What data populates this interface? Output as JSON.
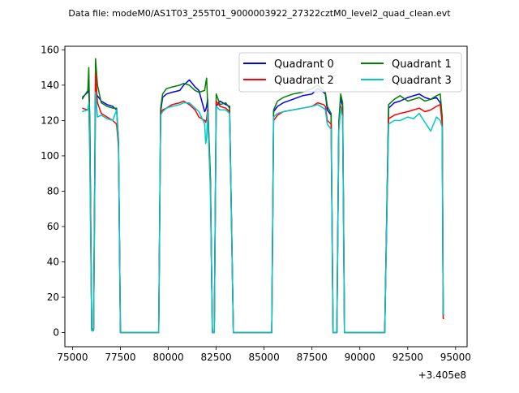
{
  "chart_data": {
    "type": "line",
    "title": "Data file: modeM0/AS1T03_255T01_9000003922_27322cztM0_level2_quad_clean.evt",
    "xlabel": "",
    "ylabel": "",
    "x_offset_label": "+3.405e8",
    "xlim": [
      74600,
      95600
    ],
    "ylim": [
      -8,
      162
    ],
    "x_ticks": [
      75000,
      77500,
      80000,
      82500,
      85000,
      87500,
      90000,
      92500,
      95000
    ],
    "x_tick_labels": [
      "75000",
      "77500",
      "80000",
      "82500",
      "85000",
      "87500",
      "90000",
      "92500",
      "95000"
    ],
    "y_ticks": [
      0,
      20,
      40,
      60,
      80,
      100,
      120,
      140,
      160
    ],
    "y_tick_labels": [
      "0",
      "20",
      "40",
      "60",
      "80",
      "100",
      "120",
      "140",
      "160"
    ],
    "grid": false,
    "legend": {
      "placement": "top-right",
      "columns": 2
    },
    "series": [
      {
        "name": "Quadrant 0",
        "color": "#0000ff",
        "x": [
          75500,
          75800,
          75850,
          75900,
          76000,
          76100,
          76200,
          76300,
          76500,
          76800,
          77100,
          77300,
          77400,
          77500,
          78500,
          79500,
          79600,
          79700,
          79900,
          80200,
          80600,
          80800,
          81100,
          81400,
          81600,
          81900,
          81950,
          82000,
          82050,
          82200,
          82300,
          82400,
          82500,
          82700,
          83000,
          83200,
          83400,
          84500,
          85400,
          85500,
          85700,
          86000,
          86500,
          87000,
          87500,
          87800,
          88100,
          88200,
          88300,
          88500,
          88600,
          88700,
          88800,
          88900,
          89000,
          89100,
          89200,
          90000,
          91300,
          91500,
          91800,
          92100,
          92500,
          92800,
          93100,
          93400,
          93700,
          94000,
          94200,
          94300,
          94350,
          94400
        ],
        "y": [
          133,
          136,
          140,
          120,
          2,
          2,
          135,
          134,
          131,
          129,
          128,
          126,
          108,
          0,
          0,
          0,
          125,
          133,
          135,
          136,
          137,
          140,
          143,
          139,
          137,
          125,
          126,
          128,
          132,
          85,
          0,
          0,
          128,
          131,
          129,
          128,
          0,
          0,
          0,
          125,
          128,
          130,
          132,
          134,
          135,
          138,
          136,
          135,
          126,
          123,
          0,
          0,
          0,
          118,
          133,
          128,
          0,
          0,
          0,
          127,
          130,
          131,
          133,
          134,
          135,
          133,
          132,
          133,
          130,
          122,
          10,
          10
        ]
      },
      {
        "name": "Quadrant 1",
        "color": "#008000",
        "x": [
          75500,
          75800,
          75850,
          75900,
          76000,
          76100,
          76200,
          76300,
          76500,
          76800,
          77100,
          77300,
          77400,
          77500,
          78500,
          79500,
          79600,
          79700,
          79900,
          80200,
          80600,
          80800,
          81100,
          81400,
          81600,
          81900,
          81950,
          82000,
          82050,
          82200,
          82300,
          82400,
          82500,
          82700,
          83000,
          83200,
          83400,
          84500,
          85400,
          85500,
          85700,
          86000,
          86500,
          87000,
          87500,
          87800,
          88100,
          88200,
          88300,
          88500,
          88600,
          88700,
          88800,
          88900,
          89000,
          89100,
          89200,
          90000,
          91300,
          91500,
          91800,
          92100,
          92500,
          92800,
          93100,
          93400,
          93700,
          94000,
          94200,
          94300,
          94350,
          94400
        ],
        "y": [
          132,
          137,
          150,
          118,
          2,
          2,
          155,
          140,
          130,
          128,
          127,
          127,
          109,
          0,
          0,
          0,
          127,
          135,
          138,
          139,
          140,
          141,
          140,
          137,
          136,
          137,
          141,
          144,
          130,
          88,
          0,
          0,
          135,
          129,
          130,
          127,
          0,
          0,
          0,
          126,
          131,
          133,
          135,
          136,
          138,
          140,
          137,
          136,
          128,
          124,
          0,
          0,
          0,
          119,
          135,
          130,
          0,
          0,
          0,
          129,
          132,
          134,
          131,
          132,
          133,
          131,
          132,
          134,
          135,
          122,
          10,
          10
        ]
      },
      {
        "name": "Quadrant 2",
        "color": "#ff0000",
        "x": [
          75500,
          75800,
          75850,
          75900,
          76000,
          76100,
          76200,
          76300,
          76500,
          76800,
          77100,
          77300,
          77400,
          77500,
          78500,
          79500,
          79600,
          79700,
          79900,
          80200,
          80600,
          80800,
          81100,
          81400,
          81600,
          81900,
          81950,
          82000,
          82050,
          82200,
          82300,
          82400,
          82500,
          82700,
          83000,
          83200,
          83400,
          84500,
          85400,
          85500,
          85700,
          86000,
          86500,
          87000,
          87500,
          87800,
          88100,
          88200,
          88300,
          88500,
          88600,
          88700,
          88800,
          88900,
          89000,
          89100,
          89200,
          90000,
          91300,
          91500,
          91800,
          92100,
          92500,
          92800,
          93100,
          93400,
          93700,
          94000,
          94200,
          94300,
          94350,
          94400
        ],
        "y": [
          127,
          126,
          127,
          105,
          1,
          1,
          147,
          130,
          124,
          122,
          120,
          118,
          105,
          0,
          0,
          0,
          124,
          126,
          127,
          129,
          130,
          131,
          129,
          126,
          122,
          120,
          119,
          121,
          126,
          82,
          0,
          0,
          131,
          128,
          127,
          125,
          0,
          0,
          0,
          120,
          123,
          125,
          126,
          127,
          128,
          130,
          129,
          128,
          120,
          118,
          0,
          0,
          0,
          115,
          128,
          124,
          0,
          0,
          0,
          121,
          123,
          124,
          125,
          126,
          127,
          125,
          126,
          128,
          129,
          118,
          8,
          8
        ]
      },
      {
        "name": "Quadrant 3",
        "color": "#00c8c8",
        "x": [
          75500,
          75800,
          75850,
          75900,
          76000,
          76100,
          76200,
          76300,
          76500,
          76800,
          77100,
          77300,
          77400,
          77500,
          78500,
          79500,
          79600,
          79700,
          79900,
          80200,
          80600,
          80800,
          81100,
          81400,
          81600,
          81900,
          81950,
          82000,
          82050,
          82200,
          82300,
          82400,
          82500,
          82700,
          83000,
          83200,
          83400,
          84500,
          85400,
          85500,
          85700,
          86000,
          86500,
          87000,
          87500,
          87800,
          88100,
          88200,
          88300,
          88500,
          88600,
          88700,
          88800,
          88900,
          89000,
          89100,
          89200,
          90000,
          91300,
          91500,
          91800,
          92100,
          92500,
          92800,
          93100,
          93400,
          93700,
          94000,
          94200,
          94300,
          94350,
          94400
        ],
        "y": [
          125,
          126,
          130,
          100,
          1,
          1,
          136,
          122,
          123,
          121,
          120,
          126,
          106,
          0,
          0,
          0,
          123,
          125,
          127,
          128,
          129,
          130,
          130,
          127,
          125,
          118,
          107,
          110,
          125,
          80,
          0,
          0,
          128,
          126,
          126,
          124,
          0,
          0,
          0,
          122,
          124,
          125,
          126,
          127,
          128,
          129,
          127,
          126,
          118,
          115,
          0,
          0,
          0,
          114,
          127,
          122,
          0,
          0,
          0,
          118,
          120,
          120,
          122,
          121,
          124,
          119,
          114,
          122,
          120,
          116,
          10,
          10
        ]
      }
    ]
  }
}
